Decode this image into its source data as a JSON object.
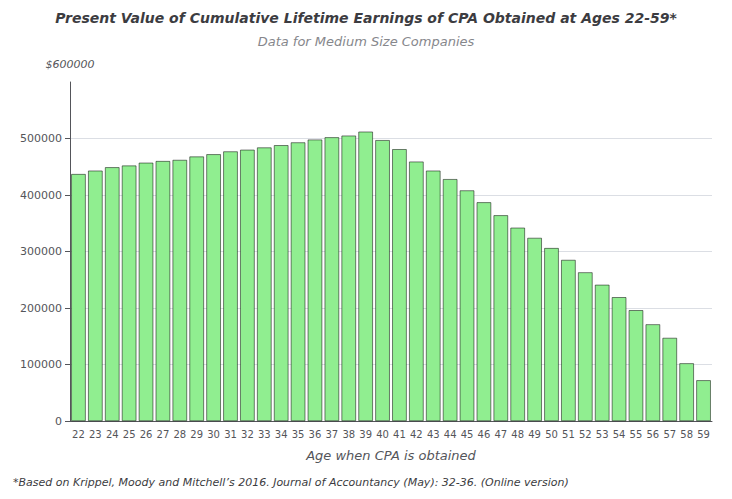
{
  "chart_data": {
    "type": "bar",
    "title": "Present Value of Cumulative Lifetime Earnings of CPA Obtained at Ages 22-59*",
    "subtitle": "Data for Medium Size Companies",
    "xlabel": "Age when CPA is obtained",
    "ylabel": "$600000",
    "footnote": "*Based on Krippel, Moody and Mitchell’s 2016. Journal of Accountancy (May): 32-36. (Online version)",
    "categories": [
      "22",
      "23",
      "24",
      "25",
      "26",
      "27",
      "28",
      "29",
      "30",
      "31",
      "32",
      "33",
      "34",
      "35",
      "36",
      "37",
      "38",
      "39",
      "40",
      "41",
      "42",
      "43",
      "44",
      "45",
      "46",
      "47",
      "48",
      "49",
      "50",
      "51",
      "52",
      "53",
      "54",
      "55",
      "56",
      "57",
      "58",
      "59"
    ],
    "values": [
      437000,
      443000,
      449000,
      452000,
      457000,
      460000,
      462000,
      468000,
      472000,
      477000,
      480000,
      484000,
      488000,
      493000,
      498000,
      502000,
      505000,
      512000,
      497000,
      481000,
      459000,
      443000,
      428000,
      408000,
      387000,
      364000,
      342000,
      324000,
      306000,
      285000,
      263000,
      241000,
      219000,
      196000,
      171000,
      147000,
      102000,
      72000
    ],
    "color": "#90EE90",
    "ylim": [
      0,
      600000
    ],
    "yticks": [
      0,
      100000,
      200000,
      300000,
      400000,
      500000
    ],
    "grid": true
  }
}
